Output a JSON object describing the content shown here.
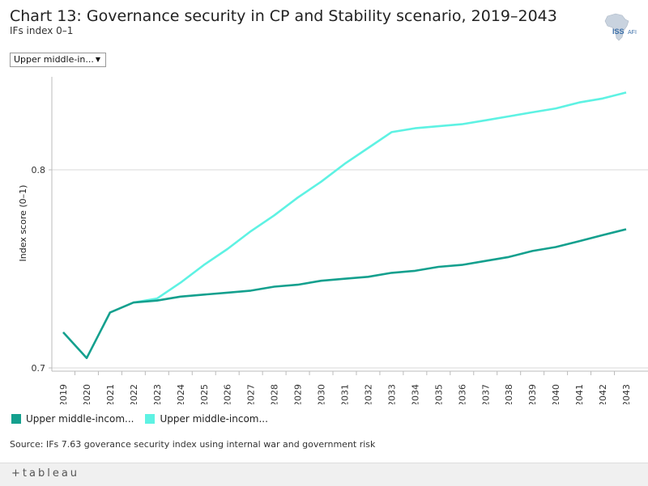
{
  "header": {
    "title": "Chart 13: Governance security in CP and Stability scenario, 2019–2043",
    "subtitle": "IFs index 0–1"
  },
  "logo": {
    "text": "ISS",
    "text2": "AFI"
  },
  "filter": {
    "selected": "Upper middle-in...",
    "caret": "▼"
  },
  "colors": {
    "series1": "#14a08e",
    "series2": "#5ef2e3",
    "grid": "#d9d9d9",
    "axis": "#bbbbbb"
  },
  "legend": [
    {
      "label": "Upper middle-incom...",
      "color": "#14a08e"
    },
    {
      "label": "Upper middle-incom...",
      "color": "#5ef2e3"
    }
  ],
  "source": "Source: IFs 7.63 goverance security index using internal war and government risk",
  "footer": {
    "brand": "+tableau"
  },
  "chart_data": {
    "type": "line",
    "title": "Chart 13: Governance security in CP and Stability scenario, 2019–2043",
    "xlabel": "",
    "ylabel": "Index score (0–1)",
    "ylim": [
      0.7,
      0.9
    ],
    "yticks": [
      0.7,
      0.8
    ],
    "ytick_labels": [
      "0.7",
      "0.8"
    ],
    "x": [
      "2019",
      "2020",
      "2021",
      "2022",
      "2023",
      "2024",
      "2025",
      "2026",
      "2027",
      "2028",
      "2029",
      "2030",
      "2031",
      "2032",
      "2033",
      "2034",
      "2035",
      "2036",
      "2037",
      "2038",
      "2039",
      "2040",
      "2041",
      "2042",
      "2043"
    ],
    "series": [
      {
        "name": "Upper middle-income (CP)",
        "values": [
          0.718,
          0.705,
          0.728,
          0.733,
          0.734,
          0.736,
          0.737,
          0.738,
          0.739,
          0.741,
          0.742,
          0.744,
          0.745,
          0.746,
          0.748,
          0.749,
          0.751,
          0.752,
          0.754,
          0.756,
          0.759,
          0.761,
          0.764,
          0.767,
          0.77
        ]
      },
      {
        "name": "Upper middle-income (Stability)",
        "values": [
          null,
          null,
          null,
          0.733,
          0.735,
          0.743,
          0.752,
          0.76,
          0.769,
          0.777,
          0.786,
          0.794,
          0.803,
          0.811,
          0.819,
          0.821,
          0.822,
          0.823,
          0.825,
          0.827,
          0.829,
          0.831,
          0.834,
          0.836,
          0.839
        ]
      }
    ]
  }
}
